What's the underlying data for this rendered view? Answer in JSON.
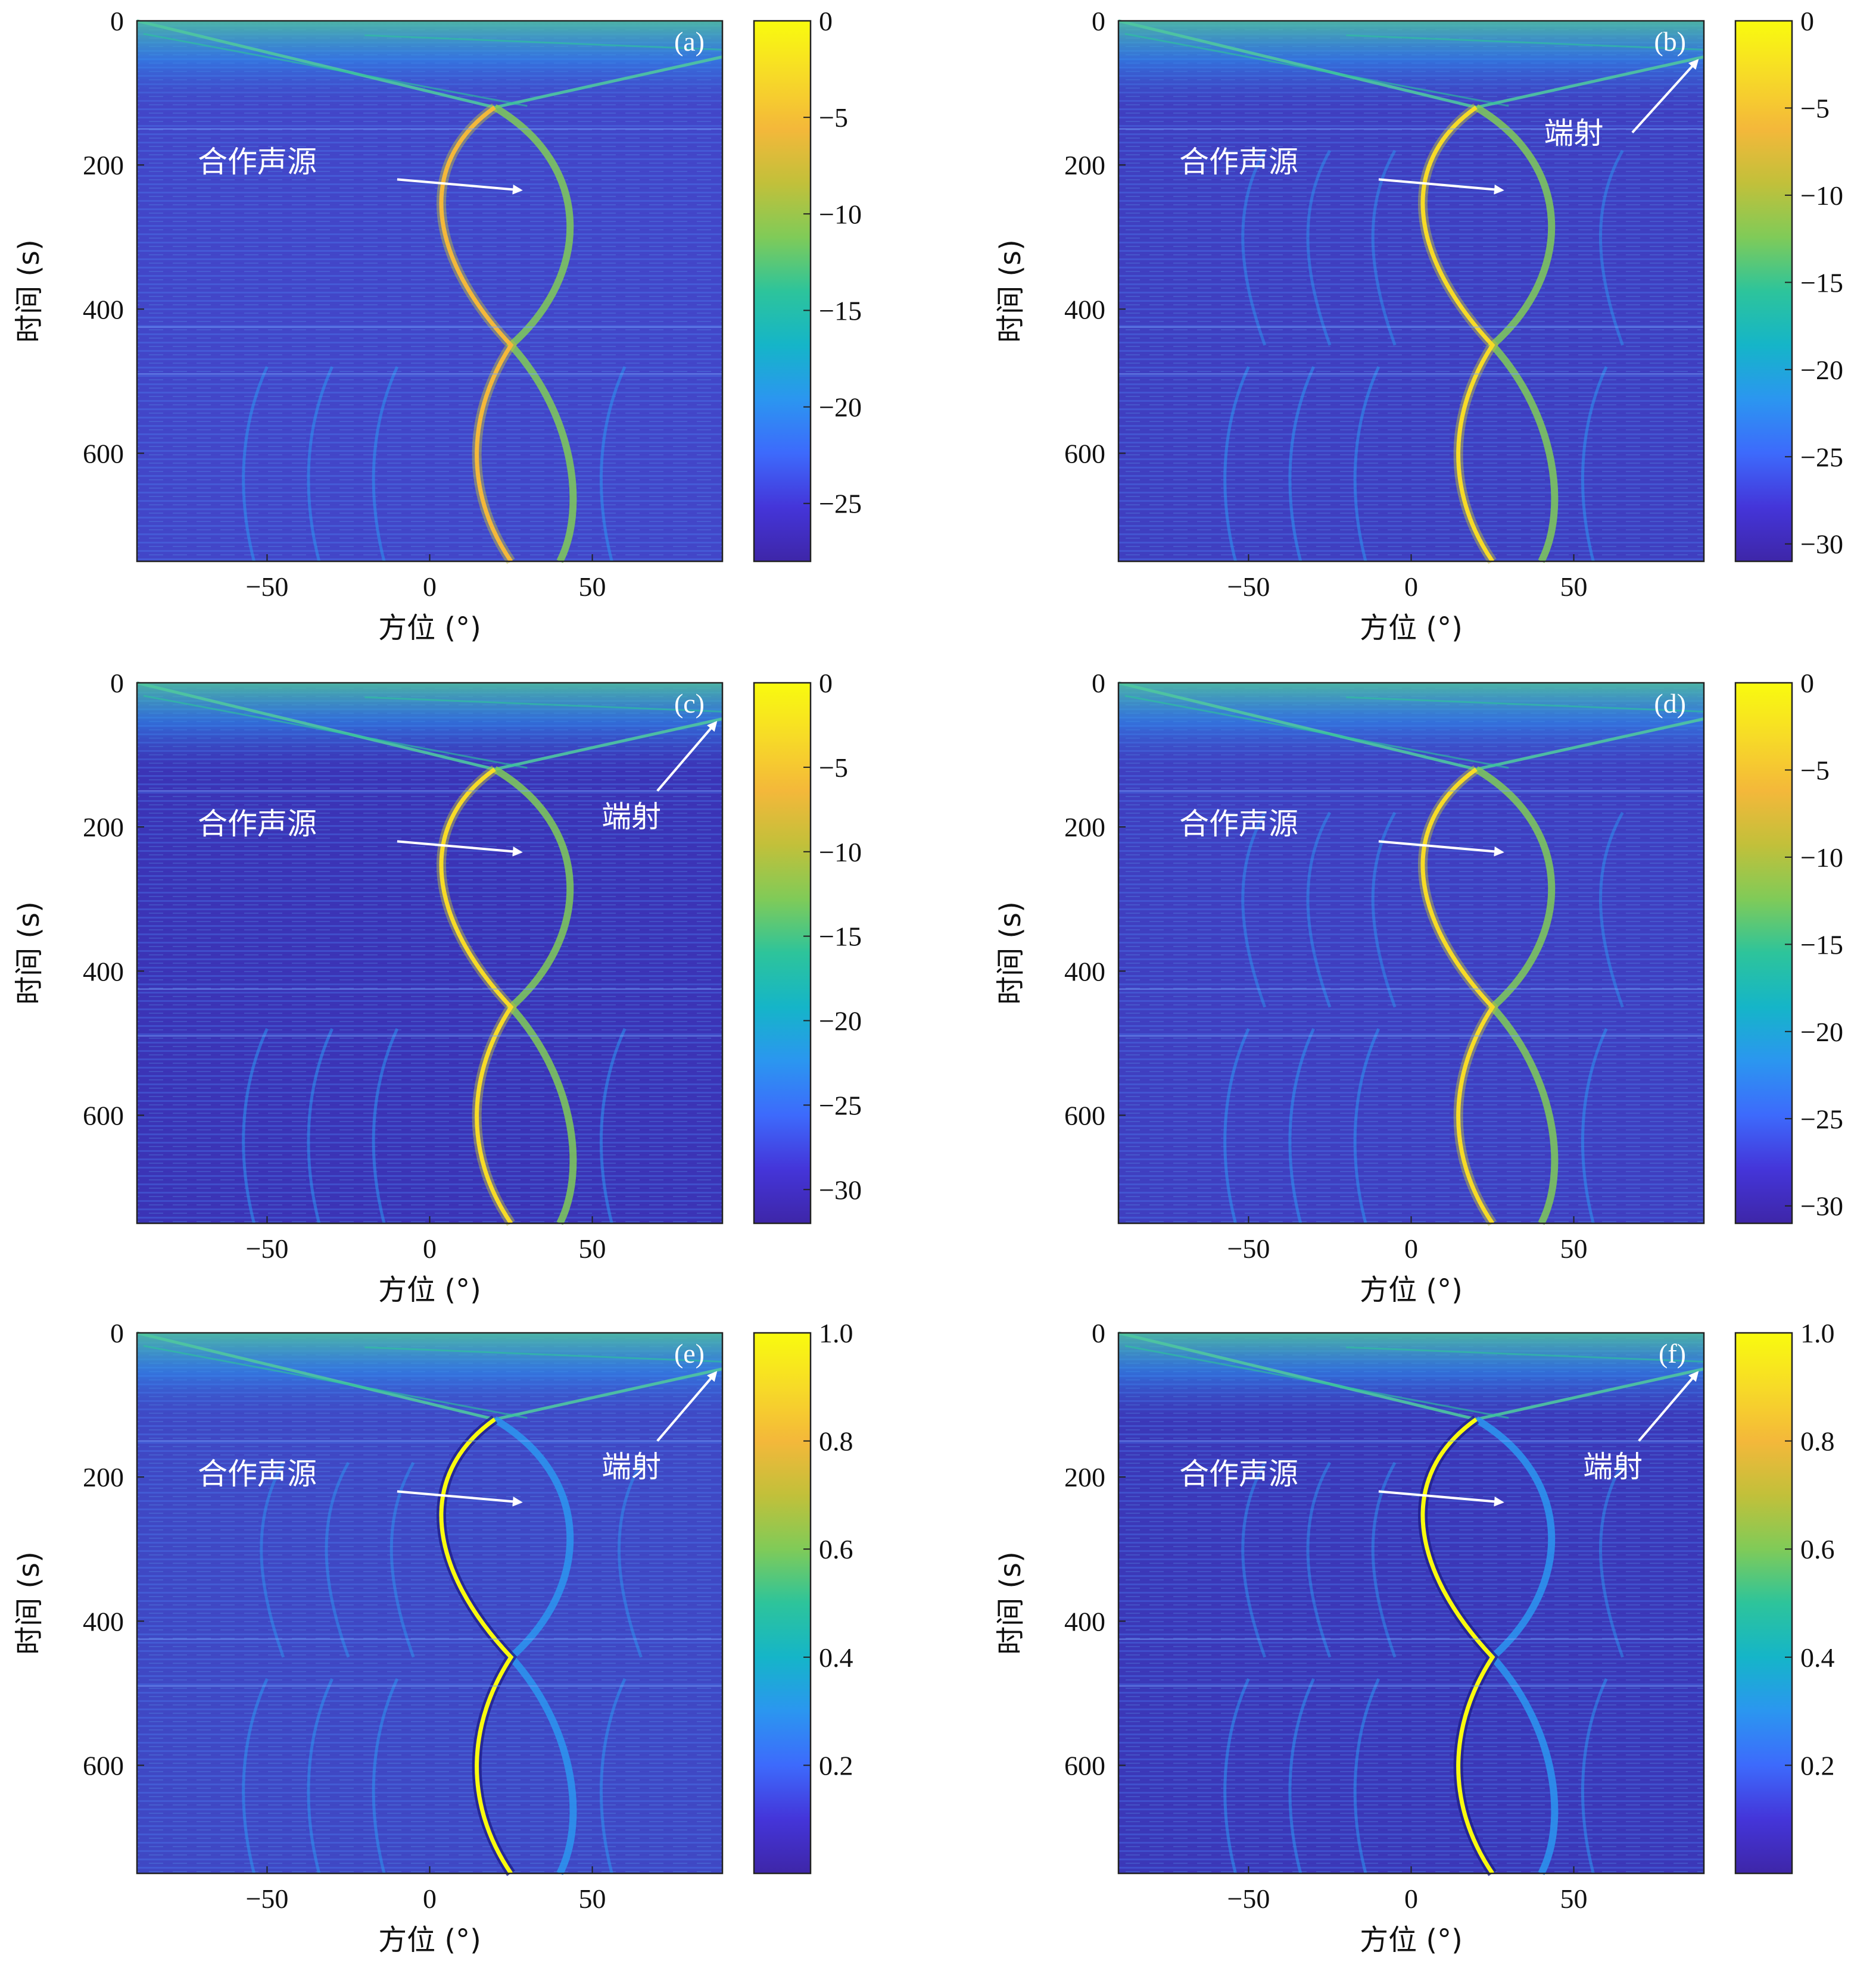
{
  "figure": {
    "xlabel": "方位 (°)",
    "ylabel": "时间 (s)"
  },
  "annotations": {
    "source": "合作声源",
    "endfire": "端射"
  },
  "colormap": [
    "#3e26a8",
    "#4435d9",
    "#3d6afc",
    "#2b96f0",
    "#15b5c8",
    "#2dc49b",
    "#80cb58",
    "#c2c03a",
    "#f4b83a",
    "#f7db27",
    "#f9fb0e"
  ],
  "chart_data": [
    {
      "type": "heatmap",
      "panel": "(a)",
      "xlabel": "方位 (°)",
      "ylabel": "时间 (s)",
      "xlim": [
        -90,
        90
      ],
      "ylim": [
        750,
        0
      ],
      "xticks": [
        -50,
        0,
        50
      ],
      "yticks": [
        0,
        200,
        400,
        600
      ],
      "colorbar": {
        "range": [
          -28,
          0
        ],
        "ticks": [
          "0",
          "−5",
          "−10",
          "−15",
          "−20",
          "−25"
        ],
        "tick_values": [
          0,
          -5,
          -10,
          -15,
          -20,
          -25
        ]
      },
      "annotations": [
        "合作声源"
      ]
    },
    {
      "type": "heatmap",
      "panel": "(b)",
      "xlabel": "方位 (°)",
      "ylabel": "时间 (s)",
      "xlim": [
        -90,
        90
      ],
      "ylim": [
        750,
        0
      ],
      "xticks": [
        -50,
        0,
        50
      ],
      "yticks": [
        0,
        200,
        400,
        600
      ],
      "colorbar": {
        "range": [
          -31,
          0
        ],
        "ticks": [
          "0",
          "−5",
          "−10",
          "−15",
          "−20",
          "−25",
          "−30"
        ],
        "tick_values": [
          0,
          -5,
          -10,
          -15,
          -20,
          -25,
          -30
        ]
      },
      "annotations": [
        "合作声源",
        "端射"
      ]
    },
    {
      "type": "heatmap",
      "panel": "(c)",
      "xlabel": "方位 (°)",
      "ylabel": "时间 (s)",
      "xlim": [
        -90,
        90
      ],
      "ylim": [
        750,
        0
      ],
      "xticks": [
        -50,
        0,
        50
      ],
      "yticks": [
        0,
        200,
        400,
        600
      ],
      "colorbar": {
        "range": [
          -32,
          0
        ],
        "ticks": [
          "0",
          "−5",
          "−10",
          "−15",
          "−20",
          "−25",
          "−30"
        ],
        "tick_values": [
          0,
          -5,
          -10,
          -15,
          -20,
          -25,
          -30
        ]
      },
      "annotations": [
        "合作声源",
        "端射"
      ]
    },
    {
      "type": "heatmap",
      "panel": "(d)",
      "xlabel": "方位 (°)",
      "ylabel": "时间 (s)",
      "xlim": [
        -90,
        90
      ],
      "ylim": [
        750,
        0
      ],
      "xticks": [
        -50,
        0,
        50
      ],
      "yticks": [
        0,
        200,
        400,
        600
      ],
      "colorbar": {
        "range": [
          -31,
          0
        ],
        "ticks": [
          "0",
          "−5",
          "−10",
          "−15",
          "−20",
          "−25",
          "−30"
        ],
        "tick_values": [
          0,
          -5,
          -10,
          -15,
          -20,
          -25,
          -30
        ]
      },
      "annotations": [
        "合作声源"
      ]
    },
    {
      "type": "heatmap",
      "panel": "(e)",
      "xlabel": "方位 (°)",
      "ylabel": "时间 (s)",
      "xlim": [
        -90,
        90
      ],
      "ylim": [
        750,
        0
      ],
      "xticks": [
        -50,
        0,
        50
      ],
      "yticks": [
        0,
        200,
        400,
        600
      ],
      "colorbar": {
        "range": [
          0,
          1
        ],
        "ticks": [
          "1.0",
          "0.8",
          "0.6",
          "0.4",
          "0.2"
        ],
        "tick_values": [
          1.0,
          0.8,
          0.6,
          0.4,
          0.2
        ]
      },
      "annotations": [
        "合作声源",
        "端射"
      ]
    },
    {
      "type": "heatmap",
      "panel": "(f)",
      "xlabel": "方位 (°)",
      "ylabel": "时间 (s)",
      "xlim": [
        -90,
        90
      ],
      "ylim": [
        750,
        0
      ],
      "xticks": [
        -50,
        0,
        50
      ],
      "yticks": [
        0,
        200,
        400,
        600
      ],
      "colorbar": {
        "range": [
          0,
          1
        ],
        "ticks": [
          "1.0",
          "0.8",
          "0.6",
          "0.4",
          "0.2"
        ],
        "tick_values": [
          1.0,
          0.8,
          0.6,
          0.4,
          0.2
        ]
      },
      "annotations": [
        "合作声源",
        "端射"
      ]
    }
  ]
}
